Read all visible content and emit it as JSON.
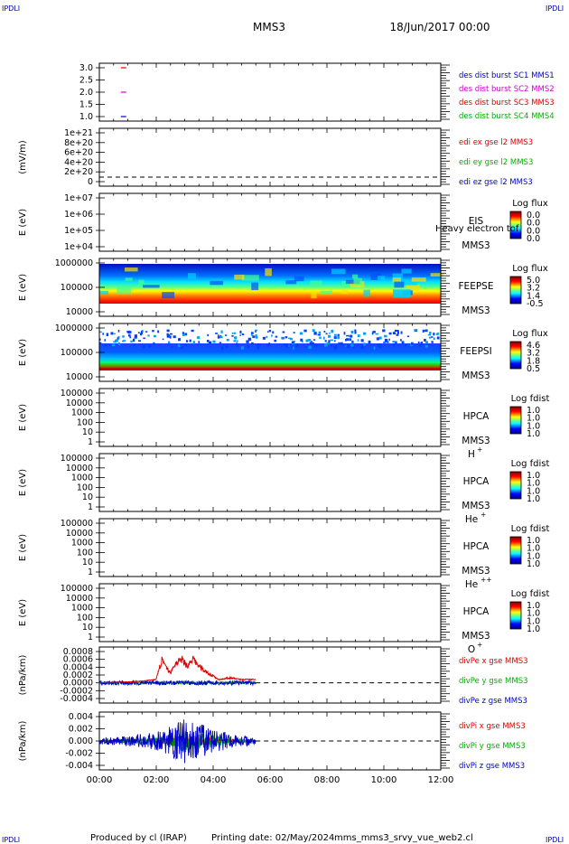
{
  "header": {
    "corner_tl": "IPDLI",
    "corner_tr": "IPDLI",
    "corner_bl": "IPDLI",
    "corner_br": "IPDLI",
    "spacecraft": "MMS3",
    "date": "18/Jun/2017 00:00"
  },
  "footer": {
    "produced_by": "Produced by cl (IRAP)",
    "printing_date": "Printing date: 02/May/2024",
    "filename": "mms_mms3_srvy_vue_web2.cl"
  },
  "colors": {
    "red": "#e00000",
    "green": "#00b000",
    "blue": "#0000cc",
    "magenta": "#d000d0"
  },
  "panels": [
    {
      "id": "dist-burst",
      "ylabel": "",
      "tick_labels": [
        "3.0",
        "2.5",
        "2.0",
        "1.5",
        "1.0"
      ],
      "legend": [
        {
          "text": "des dist burst SC1 MMS1",
          "color": "#0000cc"
        },
        {
          "text": "des dist burst SC2 MMS2",
          "color": "#d000d0"
        },
        {
          "text": "des dist burst SC3 MMS3",
          "color": "#e00000"
        },
        {
          "text": "des dist burst SC4 MMS4",
          "color": "#00b000"
        }
      ]
    },
    {
      "id": "edi-e",
      "ylabel": "(mV/m)",
      "tick_labels": [
        "1e+21",
        "8e+20",
        "6e+20",
        "4e+20",
        "2e+20",
        "0"
      ],
      "legend": [
        {
          "text": "edi ex gse l2 MMS3",
          "color": "#e00000"
        },
        {
          "text": "edi ey gse l2 MMS3",
          "color": "#00b000"
        },
        {
          "text": "edi ez gse l2 MMS3",
          "color": "#0000cc"
        }
      ]
    },
    {
      "id": "eis",
      "ylabel": "E (eV)",
      "tick_labels": [
        "1e+07",
        "1e+06",
        "1e+05",
        "1e+04"
      ],
      "instrument": [
        "EIS",
        "MMS3"
      ],
      "overlay_label": "Heavy electron tof",
      "cbar_title": "Log flux",
      "cbar_labels": [
        "0.0",
        "0.0",
        "0.0",
        "0.0"
      ]
    },
    {
      "id": "feepse",
      "ylabel": "E (eV)",
      "tick_labels": [
        "1000000",
        "100000",
        "10000"
      ],
      "instrument": [
        "FEEPSE",
        "MMS3"
      ],
      "cbar_title": "Log flux",
      "cbar_labels": [
        "5.0",
        "3.2",
        "1.4",
        "-0.5"
      ]
    },
    {
      "id": "feepsi",
      "ylabel": "E (eV)",
      "tick_labels": [
        "1000000",
        "100000",
        "10000"
      ],
      "instrument": [
        "FEEPSI",
        "MMS3"
      ],
      "cbar_title": "Log flux",
      "cbar_labels": [
        "4.6",
        "3.2",
        "1.8",
        "0.5"
      ]
    },
    {
      "id": "hpca-h",
      "ylabel": "E (eV)",
      "tick_labels": [
        "100000",
        "10000",
        "1000",
        "100",
        "10",
        "1"
      ],
      "instrument": [
        "HPCA",
        "MMS3"
      ],
      "species": "H",
      "species_sup": "+",
      "cbar_title": "Log fdist",
      "cbar_labels": [
        "1.0",
        "1.0",
        "1.0",
        "1.0"
      ]
    },
    {
      "id": "hpca-he",
      "ylabel": "E (eV)",
      "tick_labels": [
        "100000",
        "10000",
        "1000",
        "100",
        "10",
        "1"
      ],
      "instrument": [
        "HPCA",
        "MMS3"
      ],
      "species": "He",
      "species_sup": "+",
      "cbar_title": "Log fdist",
      "cbar_labels": [
        "1.0",
        "1.0",
        "1.0",
        "1.0"
      ]
    },
    {
      "id": "hpca-he2",
      "ylabel": "E (eV)",
      "tick_labels": [
        "100000",
        "10000",
        "1000",
        "100",
        "10",
        "1"
      ],
      "instrument": [
        "HPCA",
        "MMS3"
      ],
      "species": "He",
      "species_sup": "++",
      "cbar_title": "Log fdist",
      "cbar_labels": [
        "1.0",
        "1.0",
        "1.0",
        "1.0"
      ]
    },
    {
      "id": "hpca-o",
      "ylabel": "E (eV)",
      "tick_labels": [
        "100000",
        "10000",
        "1000",
        "100",
        "10",
        "1"
      ],
      "instrument": [
        "HPCA",
        "MMS3"
      ],
      "species": "O",
      "species_sup": "+",
      "cbar_title": "Log fdist",
      "cbar_labels": [
        "1.0",
        "1.0",
        "1.0",
        "1.0"
      ]
    },
    {
      "id": "divpe",
      "ylabel": "(nPa/km)",
      "tick_labels": [
        "0.0008",
        "0.0006",
        "0.0004",
        "0.0002",
        "0.0000",
        "-0.0002",
        "-0.0004"
      ],
      "legend": [
        {
          "text": "divPe x gse MMS3",
          "color": "#e00000"
        },
        {
          "text": "divPe y gse MMS3",
          "color": "#00b000"
        },
        {
          "text": "divPe z gse MMS3",
          "color": "#0000cc"
        }
      ]
    },
    {
      "id": "divpi",
      "ylabel": "(nPa/km)",
      "tick_labels": [
        "0.004",
        "0.002",
        "0.000",
        "-0.002",
        "-0.004"
      ],
      "legend": [
        {
          "text": "divPi x gse MMS3",
          "color": "#e00000"
        },
        {
          "text": "divPi y gse MMS3",
          "color": "#00b000"
        },
        {
          "text": "divPi z gse MMS3",
          "color": "#0000cc"
        }
      ]
    }
  ],
  "chart_data": {
    "type": "line",
    "x_tick_labels": [
      "00:00",
      "02:00",
      "04:00",
      "06:00",
      "08:00",
      "10:00",
      "12:00"
    ],
    "x_range_hours": [
      0,
      12
    ],
    "data_end_hours": 5.5,
    "dist_burst_points": [
      {
        "x": 0.85,
        "y": 3.0,
        "color": "#e00000"
      },
      {
        "x": 0.85,
        "y": 2.0,
        "color": "#d000d0"
      },
      {
        "x": 0.85,
        "y": 1.0,
        "color": "#0000cc"
      }
    ],
    "divpe_x_envelope": [
      {
        "x": 0.0,
        "y": 0.0
      },
      {
        "x": 1.0,
        "y": 3e-05
      },
      {
        "x": 1.5,
        "y": 5e-05
      },
      {
        "x": 2.0,
        "y": 0.0001
      },
      {
        "x": 2.1,
        "y": 0.0004
      },
      {
        "x": 2.2,
        "y": 0.0007
      },
      {
        "x": 2.3,
        "y": 0.0005
      },
      {
        "x": 2.5,
        "y": 0.0003
      },
      {
        "x": 2.7,
        "y": 0.0006
      },
      {
        "x": 2.9,
        "y": 0.0007
      },
      {
        "x": 3.1,
        "y": 0.0005
      },
      {
        "x": 3.3,
        "y": 0.0007
      },
      {
        "x": 3.5,
        "y": 0.0005
      },
      {
        "x": 3.8,
        "y": 0.0003
      },
      {
        "x": 4.2,
        "y": 0.0001
      },
      {
        "x": 4.6,
        "y": 0.00015
      },
      {
        "x": 5.0,
        "y": 0.0001
      },
      {
        "x": 5.5,
        "y": 0.0001
      }
    ],
    "divpi_z_envelope": [
      {
        "x": 0.0,
        "y": 0.0006
      },
      {
        "x": 1.0,
        "y": 0.0008
      },
      {
        "x": 1.5,
        "y": 0.0012
      },
      {
        "x": 2.0,
        "y": 0.0015
      },
      {
        "x": 2.5,
        "y": 0.0025
      },
      {
        "x": 2.8,
        "y": 0.0035
      },
      {
        "x": 3.1,
        "y": 0.004
      },
      {
        "x": 3.4,
        "y": 0.003
      },
      {
        "x": 3.8,
        "y": 0.0025
      },
      {
        "x": 4.2,
        "y": 0.0018
      },
      {
        "x": 4.6,
        "y": 0.0012
      },
      {
        "x": 5.0,
        "y": 0.0009
      },
      {
        "x": 5.5,
        "y": 0.0007
      }
    ]
  }
}
